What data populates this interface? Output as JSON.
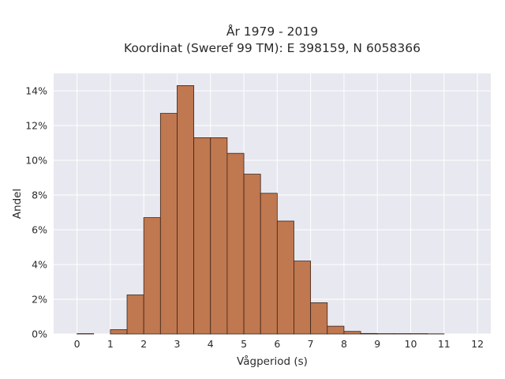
{
  "chart_data": {
    "type": "bar",
    "title_line1": "År 1979 - 2019",
    "title_line2": "Koordinat (Sweref 99 TM): E 398159, N 6058366",
    "xlabel": "Vågperiod (s)",
    "ylabel": "Andel",
    "xlim": [
      -0.7,
      12.4
    ],
    "ylim": [
      0,
      15
    ],
    "bin_width": 0.5,
    "x_ticks": [
      0,
      1,
      2,
      3,
      4,
      5,
      6,
      7,
      8,
      9,
      10,
      11,
      12
    ],
    "y_ticks": [
      0,
      2,
      4,
      6,
      8,
      10,
      12,
      14
    ],
    "y_tick_labels": [
      "0%",
      "2%",
      "4%",
      "6%",
      "8%",
      "10%",
      "12%",
      "14%"
    ],
    "grid": true,
    "bar_color": "#c07850",
    "bar_edge_color": "#3a2418",
    "bins": [
      {
        "x0": 0.0,
        "value": 0.02
      },
      {
        "x0": 0.5,
        "value": 0.0
      },
      {
        "x0": 1.0,
        "value": 0.25
      },
      {
        "x0": 1.5,
        "value": 2.25
      },
      {
        "x0": 2.0,
        "value": 6.7
      },
      {
        "x0": 2.5,
        "value": 12.7
      },
      {
        "x0": 3.0,
        "value": 14.3
      },
      {
        "x0": 3.5,
        "value": 11.3
      },
      {
        "x0": 4.0,
        "value": 11.3
      },
      {
        "x0": 4.5,
        "value": 10.4
      },
      {
        "x0": 5.0,
        "value": 9.2
      },
      {
        "x0": 5.5,
        "value": 8.1
      },
      {
        "x0": 6.0,
        "value": 6.5
      },
      {
        "x0": 6.5,
        "value": 4.2
      },
      {
        "x0": 7.0,
        "value": 1.8
      },
      {
        "x0": 7.5,
        "value": 0.45
      },
      {
        "x0": 8.0,
        "value": 0.15
      },
      {
        "x0": 8.5,
        "value": 0.03
      },
      {
        "x0": 9.0,
        "value": 0.02
      },
      {
        "x0": 9.5,
        "value": 0.02
      },
      {
        "x0": 10.0,
        "value": 0.02
      },
      {
        "x0": 10.5,
        "value": 0.01
      }
    ]
  }
}
